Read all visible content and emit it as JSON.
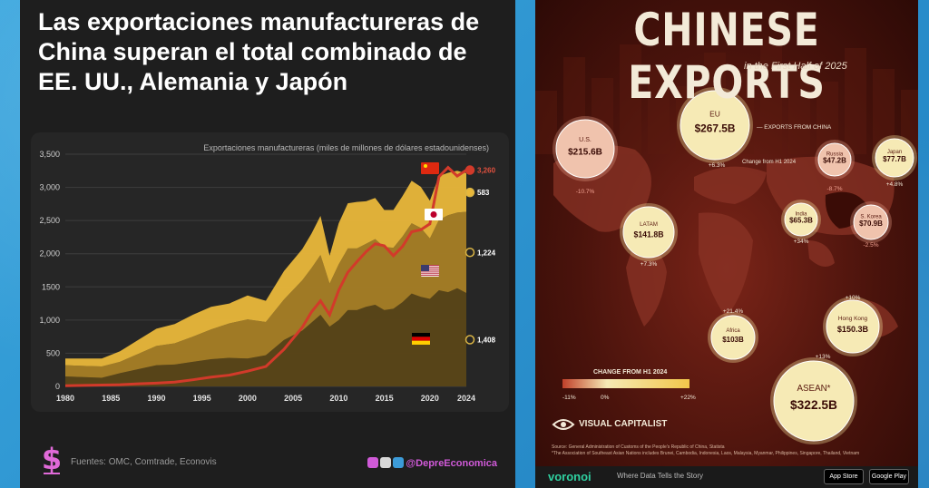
{
  "left_panel": {
    "title": "Las exportaciones manufactureras de China superan el total combinado de EE. UU., Alemania y Japón",
    "source": "Fuentes: OMC, Comtrade, Econovis",
    "handle": "@DepreEconomica",
    "chart_data": {
      "type": "area",
      "title": "Exportaciones manufactureras (miles de millones de dólares estadounidenses)",
      "x": [
        1980,
        1982,
        1984,
        1986,
        1988,
        1990,
        1992,
        1994,
        1996,
        1998,
        2000,
        2002,
        2004,
        2006,
        2007,
        2008,
        2009,
        2010,
        2011,
        2012,
        2013,
        2014,
        2015,
        2016,
        2017,
        2018,
        2019,
        2020,
        2021,
        2022,
        2023,
        2024
      ],
      "xticks": [
        1980,
        1985,
        1990,
        1995,
        2000,
        2005,
        2010,
        2015,
        2020,
        2024
      ],
      "ylim": [
        0,
        3500
      ],
      "yticks": [
        0,
        500,
        1000,
        1500,
        2000,
        2500,
        3000,
        3500
      ],
      "ytick_labels": [
        "0",
        "500",
        "1,000",
        "1500",
        "2,000",
        "2,500",
        "3,000",
        "3,500"
      ],
      "series": [
        {
          "name": "Alemania",
          "color": "#5a4617",
          "end_label": "1,408",
          "values": [
            150,
            140,
            130,
            200,
            260,
            320,
            330,
            370,
            410,
            430,
            420,
            470,
            700,
            840,
            960,
            1080,
            900,
            1000,
            1150,
            1150,
            1200,
            1230,
            1150,
            1170,
            1270,
            1400,
            1350,
            1320,
            1450,
            1420,
            1480,
            1408
          ]
        },
        {
          "name": "EE. UU.",
          "color": "#a67e25",
          "end_label": "1,224",
          "values": [
            170,
            170,
            170,
            170,
            230,
            290,
            320,
            380,
            450,
            520,
            590,
            500,
            610,
            760,
            820,
            900,
            650,
            840,
            930,
            930,
            950,
            990,
            950,
            920,
            990,
            1060,
            1040,
            910,
            1060,
            1160,
            1140,
            1224
          ]
        },
        {
          "name": "Japón",
          "color": "#e9b73a",
          "end_label": "583",
          "values": [
            100,
            110,
            120,
            160,
            210,
            260,
            290,
            330,
            340,
            300,
            360,
            320,
            430,
            470,
            520,
            590,
            420,
            620,
            680,
            700,
            640,
            620,
            560,
            570,
            610,
            640,
            620,
            570,
            660,
            640,
            630,
            583
          ]
        },
        {
          "name": "China",
          "color": "#d23a2a",
          "end_label": "3,260",
          "values": [
            10,
            15,
            20,
            25,
            40,
            50,
            65,
            100,
            140,
            170,
            230,
            300,
            560,
            890,
            1120,
            1290,
            1080,
            1450,
            1720,
            1880,
            2030,
            2150,
            2120,
            1970,
            2110,
            2330,
            2360,
            2450,
            3160,
            3300,
            3170,
            3260
          ]
        }
      ]
    }
  },
  "right_panel": {
    "title": "CHINESE EXPORTS",
    "subtitle": "in the First Half of 2025",
    "exports_label": "EXPORTS FROM CHINA",
    "change_note": "Change from H1 2024",
    "legend_title": "CHANGE FROM H1 2024",
    "legend_ticks": [
      "-11%",
      "0%",
      "+22%"
    ],
    "brand": "VISUAL CAPITALIST",
    "sources": "Source: General Administration of Customs of the People's Republic of China, Statista",
    "footnote": "*The Association of Southeast Asian Nations includes Brunei, Cambodia, Indonesia, Laos, Malaysia, Myanmar, Philippines, Singapore, Thailand, Vietnam",
    "voronoi": "voronoi",
    "tagline": "Where Data Tells the Story",
    "store1": "App Store",
    "store2": "Google Play",
    "chart_data": {
      "type": "bubble-map",
      "regions": [
        {
          "name": "EU",
          "value": "$267.5B",
          "change": "+6.3%"
        },
        {
          "name": "U.S.",
          "value": "$215.6B",
          "change": "-10.7%"
        },
        {
          "name": "LATAM",
          "value": "$141.8B",
          "change": "+7.3%"
        },
        {
          "name": "Russia",
          "value": "$47.2B",
          "change": "-8.7%"
        },
        {
          "name": "Japan",
          "value": "$77.7B",
          "change": "+4.8%"
        },
        {
          "name": "India",
          "value": "$65.3B",
          "change": "+34%"
        },
        {
          "name": "S. Korea",
          "value": "$70.9B",
          "change": "-2.5%"
        },
        {
          "name": "Africa",
          "value": "$103B",
          "change": "+21.4%"
        },
        {
          "name": "Hong Kong",
          "value": "$150.3B",
          "change": "+10%"
        },
        {
          "name": "ASEAN*",
          "value": "$322.5B",
          "change": "+13%"
        }
      ]
    }
  }
}
